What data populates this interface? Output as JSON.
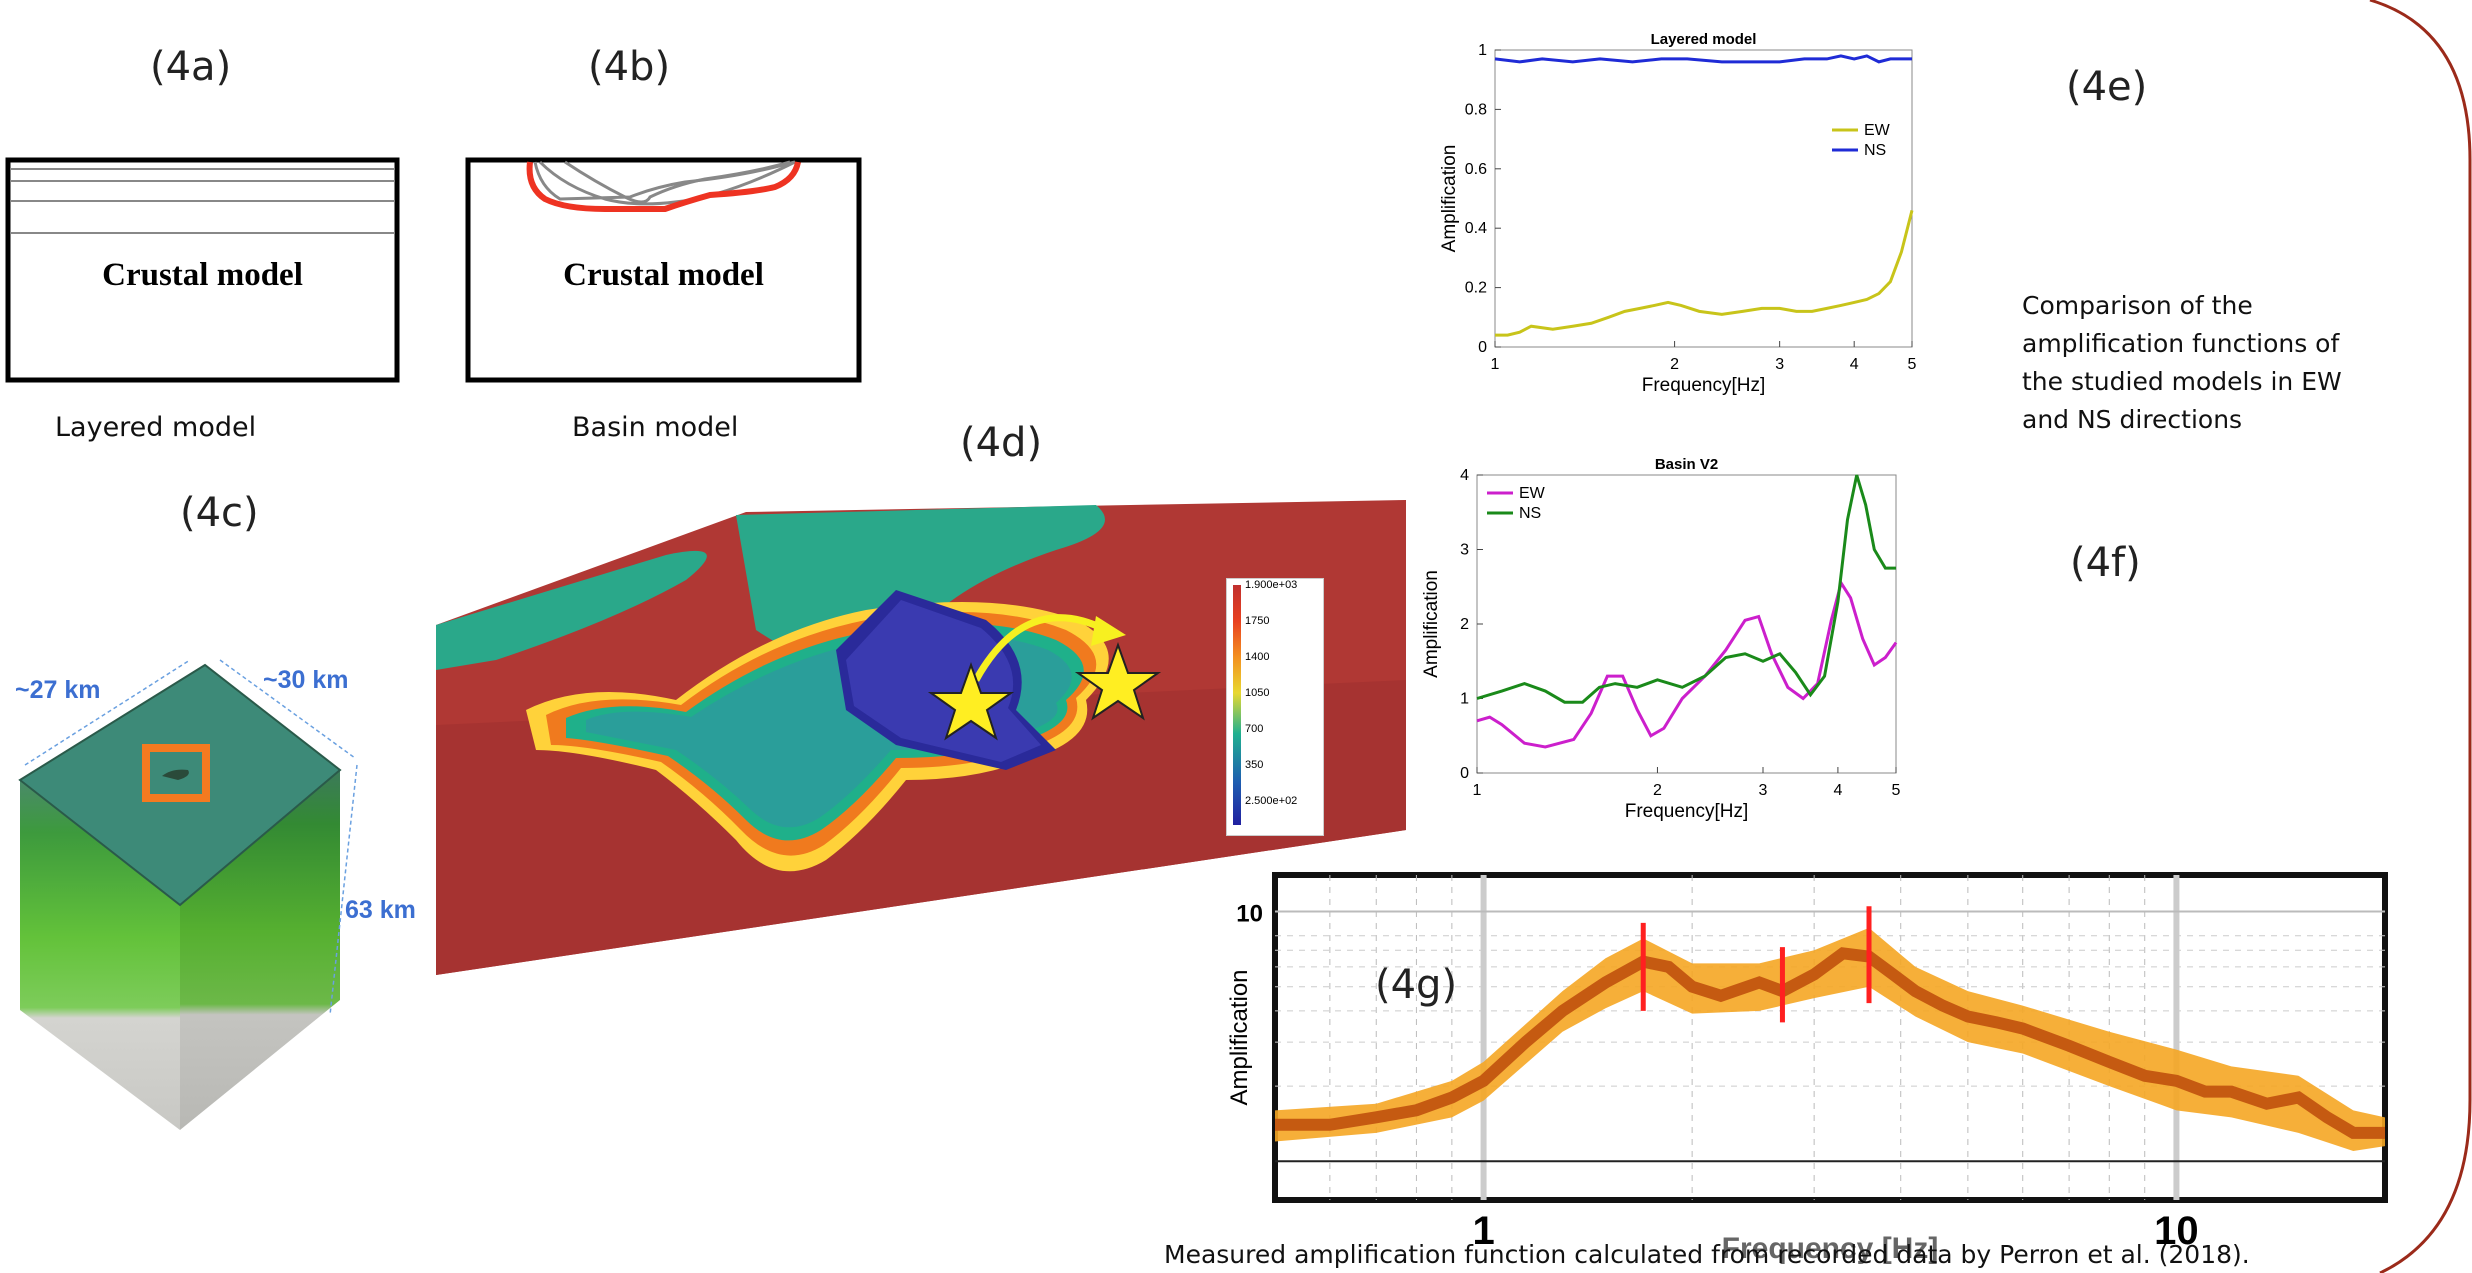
{
  "panels": {
    "a_label": "(4a)",
    "b_label": "(4b)",
    "c_label": "(4c)",
    "d_label": "(4d)",
    "e_label": "(4e)",
    "f_label": "(4f)",
    "g_label": "(4g)"
  },
  "model_a": {
    "inner_text": "Crustal model",
    "caption": "Layered model"
  },
  "model_b": {
    "inner_text": "Crustal model",
    "caption": "Basin model"
  },
  "block_model": {
    "dim_width": "~27 km",
    "dim_depth": "~30 km",
    "dim_height": "63 km"
  },
  "velocity_colorbar": {
    "ticks": [
      "1.900e+03",
      "1750",
      "1400",
      "1050",
      "700",
      "350",
      "2.500e+02"
    ]
  },
  "comparison_text": "Comparison of the amplification functions of the studied models in EW and NS directions",
  "measured_caption": "Measured amplification function calculated from recorded data by Perron et al. (2018).",
  "chart_data": [
    {
      "id": "layered",
      "type": "line",
      "title": "Layered model",
      "xlabel": "Frequency[Hz]",
      "ylabel": "Amplification",
      "xscale": "log",
      "xlim": [
        1,
        5
      ],
      "ylim": [
        0,
        1
      ],
      "xticks": [
        1,
        2,
        3,
        4,
        5
      ],
      "yticks": [
        0,
        0.2,
        0.4,
        0.6,
        0.8,
        1
      ],
      "xticklabels": [
        "1",
        "2",
        "3",
        "4",
        "5"
      ],
      "yticklabels": [
        "0",
        "0.2",
        "0.4",
        "0.6",
        "0.8",
        "1"
      ],
      "legend_position": "upper right",
      "series": [
        {
          "name": "EW",
          "color": "#c8c41a",
          "x": [
            1,
            1.05,
            1.1,
            1.15,
            1.25,
            1.35,
            1.45,
            1.55,
            1.65,
            1.75,
            1.85,
            1.95,
            2.05,
            2.2,
            2.4,
            2.6,
            2.8,
            3.0,
            3.2,
            3.4,
            3.6,
            3.8,
            4.0,
            4.2,
            4.4,
            4.6,
            4.8,
            5.0
          ],
          "y": [
            0.04,
            0.04,
            0.05,
            0.07,
            0.06,
            0.07,
            0.08,
            0.1,
            0.12,
            0.13,
            0.14,
            0.15,
            0.14,
            0.12,
            0.11,
            0.12,
            0.13,
            0.13,
            0.12,
            0.12,
            0.13,
            0.14,
            0.15,
            0.16,
            0.18,
            0.22,
            0.32,
            0.46
          ]
        },
        {
          "name": "NS",
          "color": "#1f2bd6",
          "x": [
            1,
            1.1,
            1.2,
            1.35,
            1.5,
            1.7,
            1.9,
            2.1,
            2.4,
            2.7,
            3.0,
            3.3,
            3.6,
            3.8,
            4.0,
            4.2,
            4.4,
            4.6,
            4.8,
            5.0
          ],
          "y": [
            0.97,
            0.96,
            0.97,
            0.96,
            0.97,
            0.96,
            0.97,
            0.97,
            0.96,
            0.96,
            0.96,
            0.97,
            0.97,
            0.98,
            0.97,
            0.98,
            0.96,
            0.97,
            0.97,
            0.97
          ]
        }
      ]
    },
    {
      "id": "basin",
      "type": "line",
      "title": "Basin V2",
      "xlabel": "Frequency[Hz]",
      "ylabel": "Amplification",
      "xscale": "log",
      "xlim": [
        1,
        5
      ],
      "ylim": [
        0,
        4
      ],
      "xticks": [
        1,
        2,
        3,
        4,
        5
      ],
      "yticks": [
        0,
        1,
        2,
        3,
        4
      ],
      "xticklabels": [
        "1",
        "2",
        "3",
        "4",
        "5"
      ],
      "yticklabels": [
        "0",
        "1",
        "2",
        "3",
        "4"
      ],
      "legend_position": "upper left",
      "series": [
        {
          "name": "EW",
          "color": "#cc1fcc",
          "x": [
            1,
            1.05,
            1.1,
            1.2,
            1.3,
            1.45,
            1.55,
            1.65,
            1.75,
            1.85,
            1.95,
            2.05,
            2.2,
            2.4,
            2.6,
            2.8,
            2.95,
            3.1,
            3.3,
            3.5,
            3.7,
            3.9,
            4.05,
            4.2,
            4.4,
            4.6,
            4.8,
            5.0
          ],
          "y": [
            0.7,
            0.75,
            0.65,
            0.4,
            0.35,
            0.45,
            0.8,
            1.3,
            1.3,
            0.85,
            0.5,
            0.6,
            1.0,
            1.3,
            1.65,
            2.05,
            2.1,
            1.6,
            1.15,
            1.0,
            1.2,
            2.05,
            2.55,
            2.35,
            1.8,
            1.45,
            1.55,
            1.75
          ]
        },
        {
          "name": "NS",
          "color": "#1a8a1a",
          "x": [
            1,
            1.1,
            1.2,
            1.3,
            1.4,
            1.5,
            1.6,
            1.7,
            1.85,
            2.0,
            2.2,
            2.4,
            2.6,
            2.8,
            3.0,
            3.2,
            3.4,
            3.6,
            3.8,
            4.0,
            4.15,
            4.3,
            4.45,
            4.6,
            4.8,
            5.0
          ],
          "y": [
            1.0,
            1.1,
            1.2,
            1.1,
            0.95,
            0.95,
            1.15,
            1.2,
            1.15,
            1.25,
            1.15,
            1.3,
            1.55,
            1.6,
            1.5,
            1.6,
            1.35,
            1.05,
            1.3,
            2.3,
            3.4,
            4.0,
            3.6,
            3.0,
            2.75,
            2.75
          ]
        }
      ]
    },
    {
      "id": "measured",
      "type": "area",
      "xlabel": "Frequency [Hz]",
      "ylabel": "Amplification",
      "xscale": "log",
      "yscale": "log",
      "xlim": [
        0.5,
        20
      ],
      "ylim": [
        0.7,
        14
      ],
      "xticks": [
        1,
        10
      ],
      "yticks": [
        10
      ],
      "xticklabels": [
        "1",
        "10"
      ],
      "yticklabels": [
        "10"
      ],
      "series": [
        {
          "name": "mean",
          "color": "#c55a11",
          "x": [
            0.5,
            0.6,
            0.7,
            0.8,
            0.9,
            1.0,
            1.15,
            1.3,
            1.5,
            1.7,
            1.85,
            2.0,
            2.2,
            2.5,
            2.7,
            3.0,
            3.3,
            3.6,
            3.9,
            4.2,
            4.6,
            5.0,
            5.5,
            6.0,
            7.0,
            8.0,
            9.0,
            10.0,
            11.0,
            12.0,
            13.5,
            15.0,
            16.5,
            18.0,
            20.0
          ],
          "y": [
            1.4,
            1.4,
            1.5,
            1.6,
            1.8,
            2.1,
            3.0,
            4.0,
            5.2,
            6.3,
            6.0,
            5.0,
            4.6,
            5.2,
            4.8,
            5.6,
            6.8,
            6.6,
            5.6,
            4.8,
            4.2,
            3.8,
            3.6,
            3.4,
            2.9,
            2.5,
            2.2,
            2.1,
            1.9,
            1.9,
            1.7,
            1.8,
            1.5,
            1.3,
            1.3
          ]
        },
        {
          "name": "band_upper",
          "color": "#f5a623",
          "x": [
            0.5,
            0.7,
            0.9,
            1.0,
            1.3,
            1.5,
            1.7,
            2.0,
            2.5,
            3.0,
            3.6,
            4.2,
            5.0,
            6.0,
            8.0,
            10.0,
            12.0,
            15.0,
            18.0,
            20.0
          ],
          "y": [
            1.6,
            1.7,
            2.1,
            2.5,
            4.8,
            6.5,
            7.8,
            6.2,
            6.2,
            7.0,
            8.6,
            6.0,
            4.8,
            4.2,
            3.3,
            2.8,
            2.4,
            2.2,
            1.6,
            1.5
          ]
        },
        {
          "name": "band_lower",
          "color": "#f5a623",
          "x": [
            0.5,
            0.7,
            0.9,
            1.0,
            1.3,
            1.5,
            1.7,
            2.0,
            2.5,
            3.0,
            3.6,
            4.2,
            5.0,
            6.0,
            8.0,
            10.0,
            12.0,
            15.0,
            18.0,
            20.0
          ],
          "y": [
            1.2,
            1.3,
            1.5,
            1.75,
            3.3,
            4.1,
            4.8,
            3.9,
            4.0,
            4.5,
            5.0,
            3.8,
            3.0,
            2.7,
            2.0,
            1.6,
            1.5,
            1.3,
            1.1,
            1.15
          ]
        }
      ],
      "markers": [
        {
          "x": 1.7,
          "low": 4.0,
          "high": 9.0,
          "color": "#ff2020"
        },
        {
          "x": 2.7,
          "low": 3.6,
          "high": 7.2,
          "color": "#ff2020"
        },
        {
          "x": 3.6,
          "low": 4.3,
          "high": 10.5,
          "color": "#ff2020"
        }
      ],
      "reference_line": 1.0
    }
  ]
}
